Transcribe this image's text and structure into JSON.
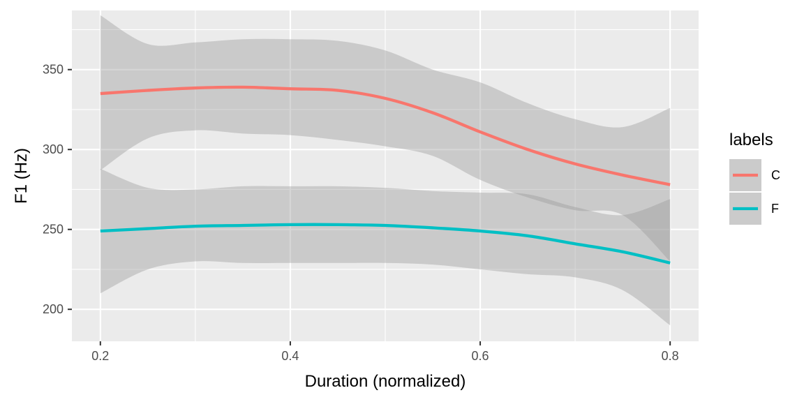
{
  "chart_data": {
    "type": "line",
    "xlabel": "Duration (normalized)",
    "ylabel": "F1 (Hz)",
    "xlim": [
      0.17,
      0.83
    ],
    "ylim": [
      180,
      387
    ],
    "x_ticks": [
      0.2,
      0.4,
      0.6,
      0.8
    ],
    "x_tick_labels": [
      "0.2",
      "0.4",
      "0.6",
      "0.8"
    ],
    "y_ticks": [
      200,
      250,
      300,
      350
    ],
    "y_tick_labels": [
      "200",
      "250",
      "300",
      "350"
    ],
    "grid": true,
    "legend": {
      "title": "labels",
      "position": "right"
    },
    "series": [
      {
        "name": "C",
        "color": "#F8766D",
        "x": [
          0.2,
          0.25,
          0.3,
          0.35,
          0.4,
          0.45,
          0.5,
          0.55,
          0.6,
          0.65,
          0.7,
          0.75,
          0.8
        ],
        "y": [
          335,
          337,
          338.5,
          339,
          338,
          337,
          332,
          323,
          311,
          300,
          291,
          284,
          278
        ],
        "ci_lower": [
          287,
          307,
          312,
          310,
          309,
          306,
          302,
          296,
          281,
          270,
          262,
          259,
          230
        ],
        "ci_upper": [
          384,
          366,
          367,
          369,
          369,
          368,
          362,
          350,
          342,
          329,
          319,
          314,
          326
        ]
      },
      {
        "name": "F",
        "color": "#00BFC4",
        "x": [
          0.2,
          0.25,
          0.3,
          0.35,
          0.4,
          0.45,
          0.5,
          0.55,
          0.6,
          0.65,
          0.7,
          0.75,
          0.8
        ],
        "y": [
          249,
          250.5,
          252,
          252.5,
          253,
          253,
          252.5,
          251,
          249,
          246,
          241,
          236,
          229
        ],
        "ci_lower": [
          210,
          225,
          230,
          229,
          229,
          229,
          229,
          228,
          225,
          222,
          220,
          212,
          190
        ],
        "ci_upper": [
          288,
          276,
          275,
          277,
          277,
          277,
          276,
          274,
          273,
          272,
          264,
          259,
          269
        ]
      }
    ]
  }
}
